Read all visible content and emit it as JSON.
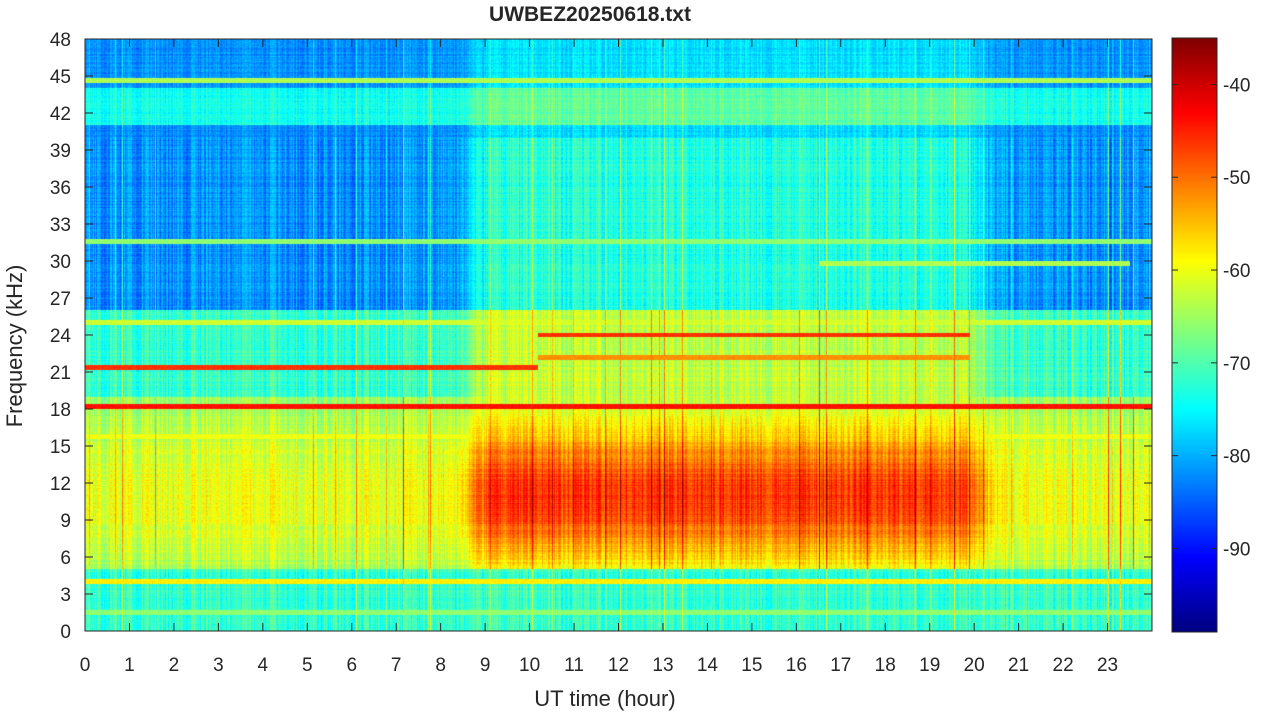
{
  "chart_data": {
    "type": "heatmap",
    "title": "UWBEZ20250618.txt",
    "xlabel": "UT time (hour)",
    "ylabel": "Frequency (kHz)",
    "xlim": [
      0,
      24
    ],
    "ylim": [
      0,
      48
    ],
    "x_ticks": [
      "0",
      "1",
      "2",
      "3",
      "4",
      "5",
      "6",
      "7",
      "8",
      "9",
      "10",
      "11",
      "12",
      "13",
      "14",
      "15",
      "16",
      "17",
      "18",
      "19",
      "20",
      "21",
      "22",
      "23"
    ],
    "y_ticks": [
      "0",
      "3",
      "6",
      "9",
      "12",
      "15",
      "18",
      "21",
      "24",
      "27",
      "30",
      "33",
      "36",
      "39",
      "42",
      "45",
      "48"
    ],
    "colorbar": {
      "colormap": "jet",
      "range": [
        -99,
        -35
      ],
      "ticks": [
        "-40",
        "-50",
        "-60",
        "-70",
        "-80",
        "-90"
      ],
      "tick_values": [
        -40,
        -50,
        -60,
        -70,
        -80,
        -90
      ]
    },
    "features": {
      "background_high_freq_dB": -82,
      "background_mid_freq_dB": -72,
      "daytime_low_freq_peak_dB": -48,
      "daytime_start_hour": 8.7,
      "daytime_end_hour": 20.2,
      "transmitter_lines": [
        {
          "freq_kHz": 18.2,
          "level_dB": -44,
          "x_start": 0,
          "x_end": 24
        },
        {
          "freq_kHz": 21.4,
          "level_dB": -46,
          "x_start": 0,
          "x_end": 10.2
        },
        {
          "freq_kHz": 24.0,
          "level_dB": -46,
          "x_start": 10.2,
          "x_end": 19.9
        },
        {
          "freq_kHz": 22.2,
          "level_dB": -52,
          "x_start": 10.2,
          "x_end": 19.9
        },
        {
          "freq_kHz": 4.0,
          "level_dB": -58,
          "x_start": 0,
          "x_end": 24
        },
        {
          "freq_kHz": 44.6,
          "level_dB": -64,
          "x_start": 0,
          "x_end": 24
        },
        {
          "freq_kHz": 25.0,
          "level_dB": -62,
          "x_start": 0,
          "x_end": 24
        },
        {
          "freq_kHz": 15.8,
          "level_dB": -60,
          "x_start": 0,
          "x_end": 24
        },
        {
          "freq_kHz": 31.6,
          "level_dB": -66,
          "x_start": 0,
          "x_end": 24
        },
        {
          "freq_kHz": 29.8,
          "level_dB": -64,
          "x_start": 16.5,
          "x_end": 23.5
        },
        {
          "freq_kHz": 1.5,
          "level_dB": -66,
          "x_start": 0,
          "x_end": 24
        }
      ]
    }
  }
}
